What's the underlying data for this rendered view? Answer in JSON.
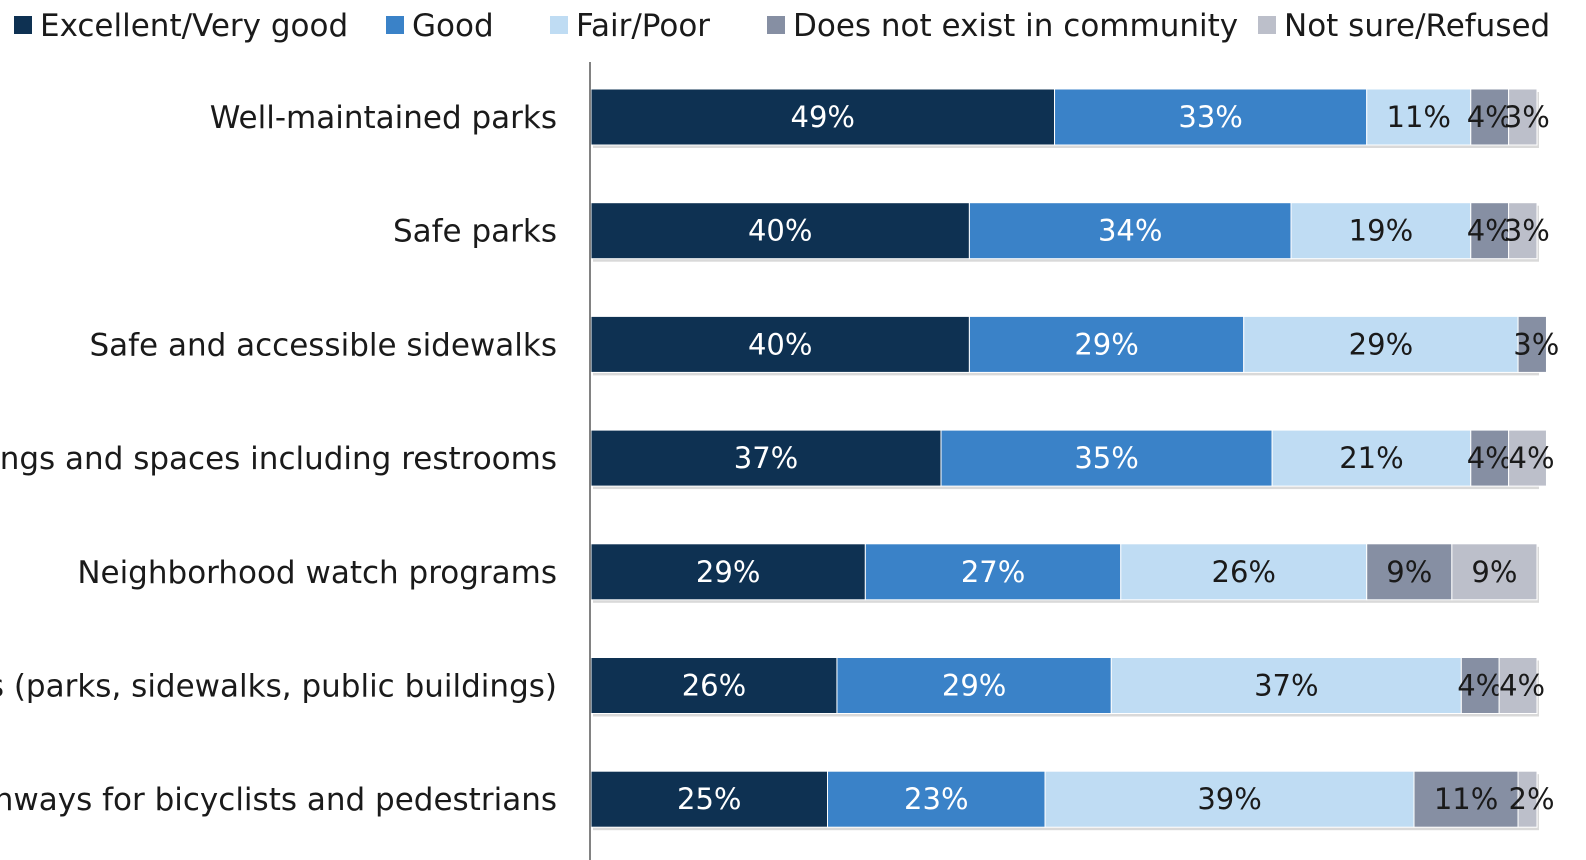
{
  "chart_data": {
    "type": "bar",
    "orientation": "horizontal",
    "stacked": true,
    "legend_position": "top",
    "xlim": [
      0,
      100
    ],
    "categories": [
      "Well-maintained parks",
      "Safe parks",
      "Safe and accessible sidewalks",
      "uildings and spaces including restrooms",
      "Neighborhood watch programs",
      "reas (parks, sidewalks, public buildings)",
      "pathways for bicyclists and pedestrians"
    ],
    "series": [
      {
        "name": "Excellent/Very good",
        "color": "#0e3152",
        "label_color": "#ffffff",
        "values": [
          49,
          40,
          40,
          37,
          29,
          26,
          25
        ],
        "labels": [
          "49%",
          "40%",
          "40%",
          "37%",
          "29%",
          "26%",
          "25%"
        ]
      },
      {
        "name": "Good",
        "color": "#3a82c8",
        "label_color": "#ffffff",
        "values": [
          33,
          34,
          29,
          35,
          27,
          29,
          23
        ],
        "labels": [
          "33%",
          "34%",
          "29%",
          "35%",
          "27%",
          "29%",
          "23%"
        ]
      },
      {
        "name": "Fair/Poor",
        "color": "#bfdcf3",
        "label_color": "#1a1a1a",
        "values": [
          11,
          19,
          29,
          21,
          26,
          37,
          39
        ],
        "labels": [
          "11%",
          "19%",
          "29%",
          "21%",
          "26%",
          "37%",
          "39%"
        ]
      },
      {
        "name": "Does not exist in community",
        "color": "#868fa3",
        "label_color": "#1a1a1a",
        "values": [
          4,
          4,
          3,
          4,
          9,
          4,
          11
        ],
        "labels": [
          "4%",
          "4%",
          "3%",
          "4%",
          "9%",
          "4%",
          "11%"
        ]
      },
      {
        "name": "Not sure/Refused",
        "color": "#bcbfca",
        "label_color": "#1a1a1a",
        "values": [
          3,
          3,
          0,
          4,
          9,
          4,
          2
        ],
        "labels": [
          "3%",
          "3%",
          "",
          "4%",
          "9%",
          "4%",
          "2%"
        ]
      }
    ]
  }
}
